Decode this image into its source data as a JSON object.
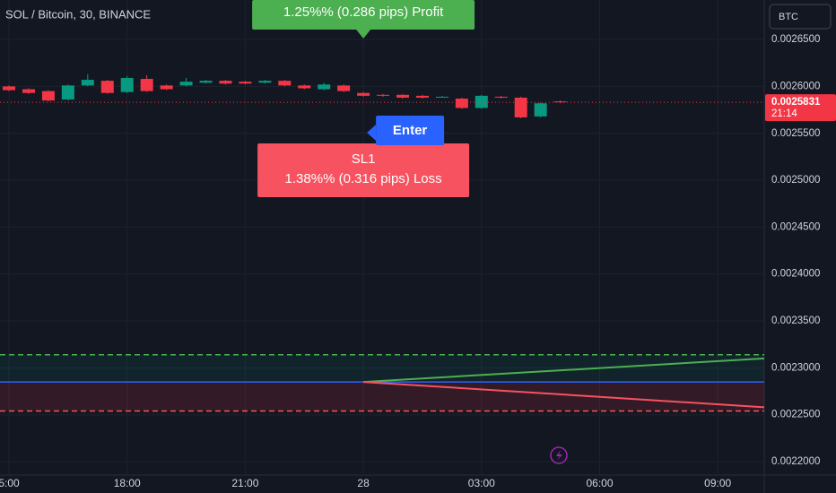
{
  "chart_data": {
    "type": "candlestick",
    "title": "SOL / Bitcoin, 30, BINANCE",
    "currency_button": "BTC",
    "up_color": "#089981",
    "down_color": "#f23645",
    "open": [
      0.0026,
      0.002597,
      0.002595,
      0.002586,
      0.002601,
      0.002606,
      0.002594,
      0.002608,
      0.002601,
      0.002601,
      0.002604,
      0.002606,
      0.002605,
      0.002604,
      0.002606,
      0.002601,
      0.002597,
      0.002601,
      0.002593,
      0.002591,
      0.002591,
      0.00259,
      0.002588,
      0.002587,
      0.002577,
      0.002589,
      0.002588,
      0.002568,
      0.002584
    ],
    "high": [
      0.002601,
      0.002598,
      0.002596,
      0.002602,
      0.002613,
      0.002607,
      0.002611,
      0.002612,
      0.002602,
      0.002609,
      0.002607,
      0.002607,
      0.002606,
      0.002607,
      0.002607,
      0.002602,
      0.002604,
      0.002602,
      0.002594,
      0.002592,
      0.002592,
      0.002591,
      0.00259,
      0.002588,
      0.002591,
      0.00259,
      0.002589,
      0.002583,
      0.002585
    ],
    "low": [
      0.002595,
      0.002592,
      0.002584,
      0.002585,
      0.0026,
      0.002592,
      0.002593,
      0.002594,
      0.002596,
      0.0026,
      0.002603,
      0.002602,
      0.002602,
      0.002603,
      0.0026,
      0.002597,
      0.002596,
      0.002594,
      0.002589,
      0.002589,
      0.002587,
      0.002587,
      0.002588,
      0.002576,
      0.002576,
      0.002587,
      0.002566,
      0.002567,
      0.002582
    ],
    "close": [
      0.002596,
      0.002593,
      0.002585,
      0.002601,
      0.002607,
      0.002593,
      0.002609,
      0.002595,
      0.002597,
      0.002605,
      0.002606,
      0.002603,
      0.002603,
      0.002606,
      0.002601,
      0.002598,
      0.002602,
      0.002595,
      0.00259,
      0.00259,
      0.002588,
      0.002588,
      0.002589,
      0.002577,
      0.00259,
      0.002588,
      0.002567,
      0.002582,
      0.0025831
    ],
    "last_price": 0.0025831,
    "countdown": "21:14",
    "xlim": [
      -0.456,
      38.36
    ],
    "xticks": [
      {
        "value": 0,
        "label": "5:00"
      },
      {
        "value": 6,
        "label": "18:00"
      },
      {
        "value": 12,
        "label": "21:00"
      },
      {
        "value": 18,
        "label": "28"
      },
      {
        "value": 24,
        "label": "03:00"
      },
      {
        "value": 30,
        "label": "06:00"
      },
      {
        "value": 36,
        "label": "09:00"
      }
    ],
    "ylim": [
      0.0021857,
      0.0026921
    ],
    "yticks": [
      {
        "value": 0.0022,
        "label": "0.0022000"
      },
      {
        "value": 0.00225,
        "label": "0.0022500"
      },
      {
        "value": 0.0023,
        "label": "0.0023000"
      },
      {
        "value": 0.00235,
        "label": "0.0023500"
      },
      {
        "value": 0.0024,
        "label": "0.0024000"
      },
      {
        "value": 0.00245,
        "label": "0.0024500"
      },
      {
        "value": 0.0025,
        "label": "0.0025000"
      },
      {
        "value": 0.00255,
        "label": "0.0025500"
      },
      {
        "value": 0.0026,
        "label": "0.0026000"
      },
      {
        "value": 0.00265,
        "label": "0.0026500"
      }
    ],
    "grid": true,
    "position": {
      "start": 18,
      "entry": 0.002285,
      "take_profit": 0.002314,
      "stop_loss": 0.002254,
      "profit_line_end": 0.00231,
      "loss_line_end": 0.002258,
      "profit_label": "1.25%% (0.286 pips) Profit",
      "entry_label": "Enter",
      "stop_name": "SL1",
      "loss_label": "1.38%% (0.316 pips) Loss"
    }
  }
}
